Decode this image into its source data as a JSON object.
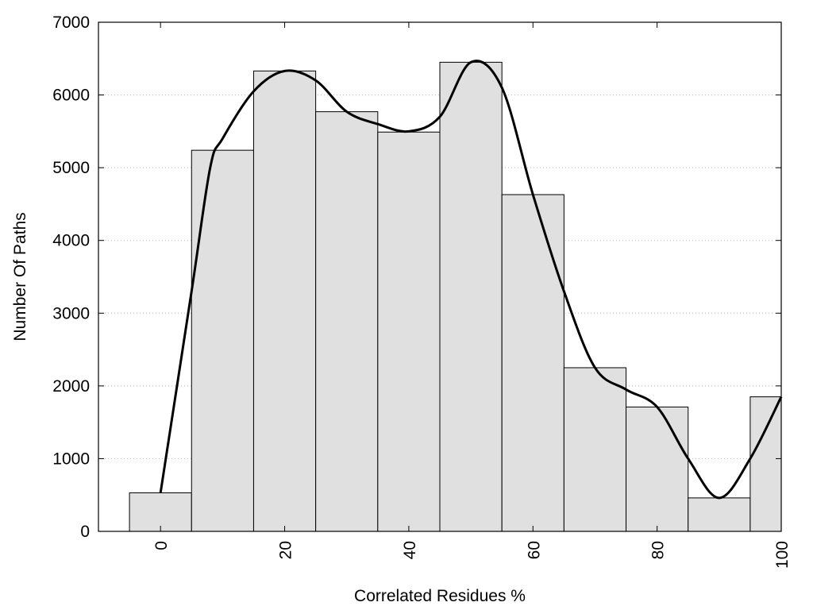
{
  "chart_data": {
    "type": "bar",
    "title": "",
    "xlabel": "Correlated Residues %",
    "ylabel": "Number Of Paths",
    "x_categories": [
      0,
      10,
      20,
      30,
      40,
      50,
      60,
      70,
      80,
      90,
      100
    ],
    "values": [
      530,
      5240,
      6330,
      5770,
      5490,
      6450,
      4630,
      2250,
      1710,
      460,
      1850
    ],
    "bar_width": 10,
    "xlim": [
      -10,
      100
    ],
    "ylim": [
      0,
      7000
    ],
    "x_ticks": [
      0,
      20,
      40,
      60,
      80,
      100
    ],
    "y_ticks": [
      0,
      1000,
      2000,
      3000,
      4000,
      5000,
      6000,
      7000
    ],
    "grid": "horizontal-dotted",
    "bar_color": "#e0e0e0",
    "bar_edge_color": "#000000",
    "curve": {
      "type": "smooth-line",
      "color": "#000000",
      "x": [
        0,
        5,
        8,
        10,
        15,
        20,
        25,
        30,
        35,
        40,
        45,
        50,
        55,
        60,
        65,
        70,
        75,
        80,
        85,
        90,
        95,
        100
      ],
      "y": [
        530,
        3300,
        5000,
        5400,
        6050,
        6330,
        6200,
        5770,
        5600,
        5500,
        5700,
        6450,
        6100,
        4630,
        3300,
        2250,
        1950,
        1710,
        1000,
        460,
        1000,
        1850
      ]
    }
  }
}
